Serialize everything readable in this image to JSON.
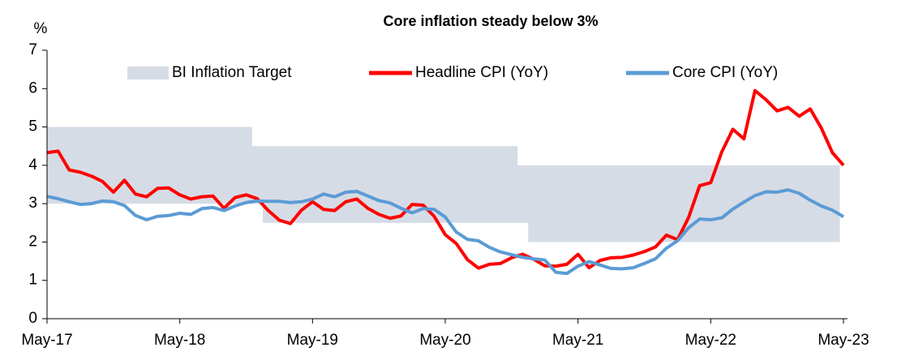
{
  "chart_data": {
    "type": "line",
    "title": "Core inflation steady below 3%",
    "y_label": "%",
    "categories": [
      "May-17",
      null,
      null,
      null,
      null,
      null,
      null,
      null,
      null,
      null,
      null,
      null,
      "May-18",
      null,
      null,
      null,
      null,
      null,
      null,
      null,
      null,
      null,
      null,
      null,
      "May-19",
      null,
      null,
      null,
      null,
      null,
      null,
      null,
      null,
      null,
      null,
      null,
      "May-20",
      null,
      null,
      null,
      null,
      null,
      null,
      null,
      null,
      null,
      null,
      null,
      "May-21",
      null,
      null,
      null,
      null,
      null,
      null,
      null,
      null,
      null,
      null,
      null,
      "May-22",
      null,
      null,
      null,
      null,
      null,
      null,
      null,
      null,
      null,
      null,
      null,
      "May-23"
    ],
    "target": {
      "name": "BI Inflation Target",
      "color": "#d6dce5",
      "high": [
        5,
        5,
        5,
        5,
        5,
        5,
        5,
        5,
        5,
        5,
        5,
        5,
        5,
        5,
        5,
        5,
        5,
        5,
        5,
        4.5,
        4.5,
        4.5,
        4.5,
        4.5,
        4.5,
        4.5,
        4.5,
        4.5,
        4.5,
        4.5,
        4.5,
        4.5,
        4.5,
        4.5,
        4.5,
        4.5,
        4.5,
        4.5,
        4.5,
        4.5,
        4.5,
        4.5,
        4.5,
        4,
        4,
        4,
        4,
        4,
        4,
        4,
        4,
        4,
        4,
        4,
        4,
        4,
        4,
        4,
        4,
        4,
        4,
        4,
        4,
        4,
        4,
        4,
        4,
        4,
        4,
        4,
        4,
        4,
        4
      ],
      "low": [
        3,
        3,
        3,
        3,
        3,
        3,
        3,
        3,
        3,
        3,
        3,
        3,
        3,
        3,
        3,
        3,
        3,
        3,
        3,
        3,
        2.5,
        2.5,
        2.5,
        2.5,
        2.5,
        2.5,
        2.5,
        2.5,
        2.5,
        2.5,
        2.5,
        2.5,
        2.5,
        2.5,
        2.5,
        2.5,
        2.5,
        2.5,
        2.5,
        2.5,
        2.5,
        2.5,
        2.5,
        2.5,
        2,
        2,
        2,
        2,
        2,
        2,
        2,
        2,
        2,
        2,
        2,
        2,
        2,
        2,
        2,
        2,
        2,
        2,
        2,
        2,
        2,
        2,
        2,
        2,
        2,
        2,
        2,
        2,
        2
      ]
    },
    "series": [
      {
        "name": "Headline CPI (YoY)",
        "color": "#ff0000",
        "values": [
          4.33,
          4.37,
          3.88,
          3.82,
          3.72,
          3.58,
          3.3,
          3.61,
          3.25,
          3.18,
          3.4,
          3.41,
          3.23,
          3.12,
          3.18,
          3.2,
          2.88,
          3.16,
          3.23,
          3.13,
          2.82,
          2.57,
          2.48,
          2.83,
          3.05,
          2.85,
          2.82,
          3.05,
          3.12,
          2.88,
          2.72,
          2.62,
          2.68,
          2.98,
          2.96,
          2.67,
          2.19,
          1.96,
          1.54,
          1.32,
          1.42,
          1.44,
          1.59,
          1.68,
          1.55,
          1.38,
          1.37,
          1.42,
          1.68,
          1.33,
          1.52,
          1.59,
          1.6,
          1.66,
          1.75,
          1.87,
          2.18,
          2.06,
          2.64,
          3.47,
          3.55,
          4.35,
          4.94,
          4.69,
          5.95,
          5.71,
          5.42,
          5.51,
          5.28,
          5.47,
          4.97,
          4.33,
          4.0
        ]
      },
      {
        "name": "Core CPI (YoY)",
        "color": "#5b9bd5",
        "values": [
          3.19,
          3.13,
          3.05,
          2.98,
          3.0,
          3.07,
          3.05,
          2.95,
          2.69,
          2.58,
          2.67,
          2.69,
          2.75,
          2.72,
          2.87,
          2.9,
          2.82,
          2.94,
          3.03,
          3.07,
          3.06,
          3.06,
          3.03,
          3.05,
          3.12,
          3.25,
          3.18,
          3.3,
          3.32,
          3.2,
          3.08,
          3.02,
          2.88,
          2.76,
          2.87,
          2.85,
          2.65,
          2.26,
          2.07,
          2.03,
          1.86,
          1.74,
          1.67,
          1.6,
          1.56,
          1.53,
          1.21,
          1.18,
          1.37,
          1.49,
          1.4,
          1.31,
          1.3,
          1.33,
          1.44,
          1.56,
          1.84,
          2.03,
          2.37,
          2.6,
          2.58,
          2.63,
          2.86,
          3.04,
          3.21,
          3.31,
          3.3,
          3.36,
          3.27,
          3.09,
          2.94,
          2.83,
          2.66
        ]
      }
    ],
    "ylim": [
      0,
      7
    ],
    "yticks": [
      0,
      1,
      2,
      3,
      4,
      5,
      6,
      7
    ],
    "grid": false
  }
}
